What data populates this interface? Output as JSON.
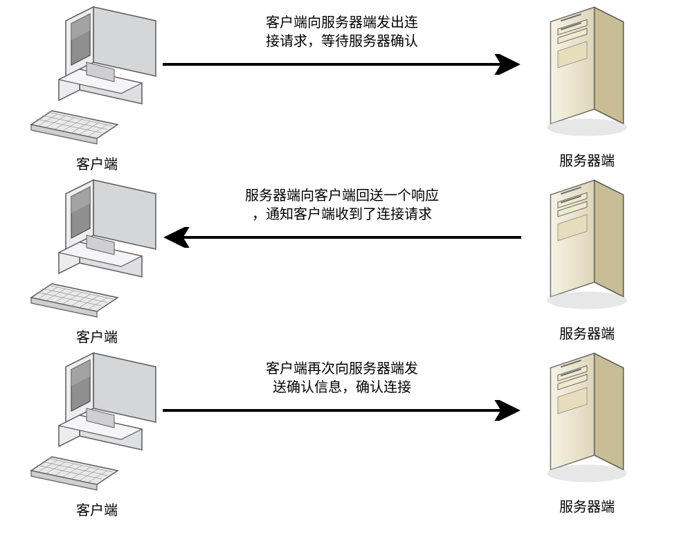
{
  "diagram": {
    "type": "flowchart",
    "background_color": "#ffffff",
    "text_color": "#000000",
    "arrow_color": "#000000",
    "arrow_stroke_width": 4,
    "label_fontsize": 20,
    "caption_fontsize": 20,
    "client_label": "客户端",
    "server_label": "服务器端",
    "client_colors": {
      "monitor_body": "#e3e4e6",
      "monitor_shadow": "#b7b8ba",
      "screen": "#8f8f8f",
      "keyboard": "#e9e9e9",
      "outline": "#5a5a5a"
    },
    "server_colors": {
      "body_light": "#f2ecd7",
      "body_mid": "#e0d7b5",
      "body_dark": "#c8bd94",
      "slot": "#6b6b6b",
      "outline": "#5a5a5a"
    },
    "steps": [
      {
        "direction": "right",
        "caption": "客户端向服务器端发出连\n接请求，等待服务器确认"
      },
      {
        "direction": "left",
        "caption": "服务器端向客户端回送一个响应\n，通知客户端收到了连接请求"
      },
      {
        "direction": "right",
        "caption": "客户端再次向服务器端发\n送确认信息，确认连接"
      }
    ]
  }
}
